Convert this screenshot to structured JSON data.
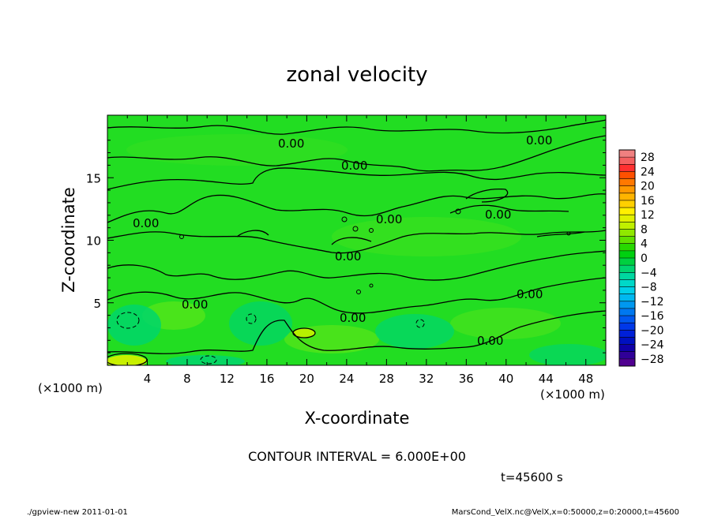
{
  "chart_data": {
    "type": "heatmap",
    "title": "zonal velocity",
    "xlabel": "X-coordinate",
    "ylabel": "Z-coordinate",
    "x_unit": "(×1000 m)",
    "y_unit": "(×1000 m)",
    "xlim": [
      0,
      50
    ],
    "ylim": [
      0,
      20
    ],
    "x_ticks": [
      4,
      8,
      12,
      16,
      20,
      24,
      28,
      32,
      36,
      40,
      44,
      48
    ],
    "y_ticks": [
      5,
      10,
      15
    ],
    "colorbar": {
      "labels": [
        "28",
        "24",
        "20",
        "16",
        "12",
        "8",
        "4",
        "0",
        "−4",
        "−8",
        "−12",
        "−16",
        "−20",
        "−24",
        "−28"
      ],
      "levels": [
        30,
        28,
        26,
        24,
        22,
        20,
        18,
        16,
        14,
        12,
        10,
        8,
        6,
        4,
        2,
        0,
        -2,
        -4,
        -6,
        -8,
        -10,
        -12,
        -14,
        -16,
        -18,
        -20,
        -22,
        -24,
        -26,
        -28,
        -30
      ],
      "colors": [
        "#f08080",
        "#f46060",
        "#ff3030",
        "#ff5000",
        "#ff7800",
        "#ff9800",
        "#ffb400",
        "#ffd000",
        "#fff000",
        "#e0f000",
        "#c0f000",
        "#90e800",
        "#60e000",
        "#28d800",
        "#00d010",
        "#00d040",
        "#00d470",
        "#00d8a0",
        "#00d8c8",
        "#00d0e8",
        "#00b8f0",
        "#0098f0",
        "#0078f0",
        "#0058f0",
        "#0038e8",
        "#0020d8",
        "#0010c0",
        "#1000a8",
        "#300098",
        "#500090"
      ]
    },
    "contour_label": "0.00",
    "contour_interval_text": "CONTOUR INTERVAL = 6.000E+00",
    "time_text": "t=45600 s",
    "background_color": "#22dd22"
  },
  "footer": {
    "left": "./gpview-new   2011-01-01",
    "right": "MarsCond_VelX.nc@VelX,x=0:50000,z=0:20000,t=45600"
  }
}
